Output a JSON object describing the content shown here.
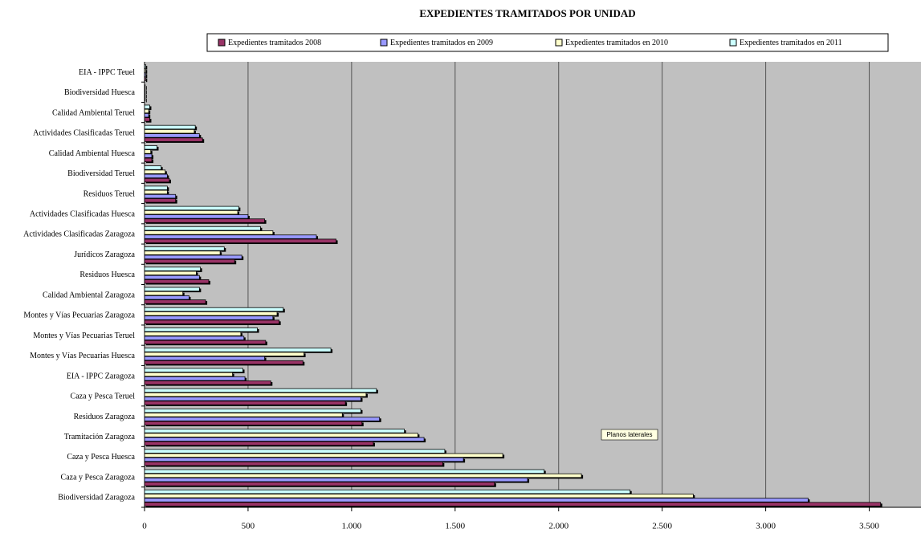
{
  "chart_data": {
    "type": "hbar",
    "title": "EXPEDIENTES TRAMITADOS POR UNIDAD",
    "annotation": "Planos laterales",
    "categories": [
      "EIA - IPPC Teuel",
      "Biodiversidad Huesca",
      "Calidad Ambiental Teruel",
      "Actividades Clasificadas Teruel",
      "Calidad Ambiental Huesca",
      "Biodiversidad Teruel",
      "Residuos Teruel",
      "Actividades Clasificadas Huesca",
      "Actividades Clasificadas Zaragoza",
      "Jurídicos Zaragoza",
      "Residuos Huesca",
      "Calidad Ambiental Zaragoza",
      "Montes y Vías Pecuarias Zaragoza",
      "Montes y Vías Pecuarias Teruel",
      "Montes y Vías Pecuarias Huesca",
      "EIA - IPPC Zaragoza",
      "Caza y Pesca Teruel",
      "Residuos Zaragoza",
      "Tramitación Zaragoza",
      "Caza y Pesca Huesca",
      "Caza y Pesca Zaragoza",
      "Biodiversidad Zaragoza"
    ],
    "series": [
      {
        "name": "Expedientes tramitados 2008",
        "color": "#993366",
        "values": [
          5,
          3,
          25,
          280,
          35,
          120,
          150,
          580,
          925,
          435,
          310,
          295,
          650,
          585,
          765,
          610,
          970,
          1050,
          1105,
          1440,
          1690,
          3555
        ]
      },
      {
        "name": "Expedientes tramitados en 2009",
        "color": "#9999ff",
        "values": [
          5,
          3,
          20,
          265,
          35,
          110,
          150,
          500,
          830,
          470,
          265,
          215,
          620,
          480,
          580,
          485,
          1045,
          1135,
          1350,
          1540,
          1850,
          3205
        ]
      },
      {
        "name": "Expedientes tramitados en 2010",
        "color": "#ffffcc",
        "values": [
          5,
          3,
          20,
          240,
          30,
          100,
          110,
          450,
          620,
          365,
          250,
          185,
          640,
          465,
          770,
          425,
          1070,
          955,
          1320,
          1730,
          2110,
          2650
        ]
      },
      {
        "name": "Expedientes tramitados en 2011",
        "color": "#ccffff",
        "values": [
          5,
          3,
          25,
          245,
          60,
          80,
          110,
          455,
          560,
          385,
          270,
          265,
          670,
          545,
          900,
          475,
          1120,
          1045,
          1255,
          1450,
          1930,
          2345
        ]
      }
    ],
    "xlim": [
      0,
      3750
    ],
    "xticks": [
      0,
      500,
      {
        "value": 1000,
        "label": "1.000"
      },
      {
        "value": 1500,
        "label": "1.500"
      },
      {
        "value": 2000,
        "label": "2.000"
      },
      {
        "value": 2500,
        "label": "2.500"
      },
      {
        "value": 3000,
        "label": "3.000"
      },
      {
        "value": 3500,
        "label": "3.500"
      }
    ],
    "grid": true
  }
}
